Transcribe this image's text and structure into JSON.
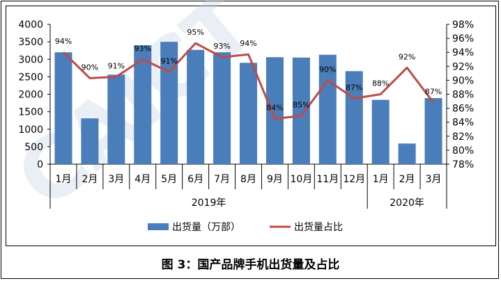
{
  "caption": "图 3：国产品牌手机出货量及占比",
  "colors": {
    "bar": "#4a7ebb",
    "line": "#be4b48",
    "watermark": "#c5d3e8"
  },
  "watermark": "CAICT",
  "chart_data": {
    "type": "bar",
    "categories": [
      "1月",
      "2月",
      "3月",
      "4月",
      "5月",
      "6月",
      "7月",
      "8月",
      "9月",
      "10月",
      "11月",
      "12月",
      "1月",
      "2月",
      "3月"
    ],
    "groups": [
      {
        "label": "2019年",
        "from": 0,
        "to": 11
      },
      {
        "label": "2020年",
        "from": 12,
        "to": 14
      }
    ],
    "series": [
      {
        "name": "出货量（万部）",
        "type": "bar",
        "axis": "left",
        "values": [
          3200,
          1310,
          2560,
          3400,
          3500,
          3270,
          3200,
          2900,
          3060,
          3050,
          3130,
          2660,
          1840,
          590,
          1890
        ]
      },
      {
        "name": "出货量占比",
        "type": "line",
        "axis": "right",
        "values": [
          94,
          90.3,
          90.5,
          93,
          91.2,
          95.3,
          93.3,
          93.7,
          84.5,
          84.9,
          90,
          87.4,
          88,
          91.8,
          86.8
        ],
        "labels": [
          "94%",
          "90%",
          "91%",
          "93%",
          "91%",
          "95%",
          "93%",
          "94%",
          "84%",
          "85%",
          "90%",
          "87%",
          "88%",
          "92%",
          "87%"
        ]
      }
    ],
    "left_axis": {
      "min": 0,
      "max": 4000,
      "ticks": [
        "0",
        "500",
        "1000",
        "1500",
        "2000",
        "2500",
        "3000",
        "3500",
        "4000"
      ]
    },
    "right_axis": {
      "min": 78,
      "max": 98,
      "ticks": [
        "78%",
        "80%",
        "82%",
        "84%",
        "86%",
        "88%",
        "90%",
        "92%",
        "94%",
        "96%",
        "98%"
      ]
    },
    "legend_position": "bottom",
    "grid": false
  }
}
